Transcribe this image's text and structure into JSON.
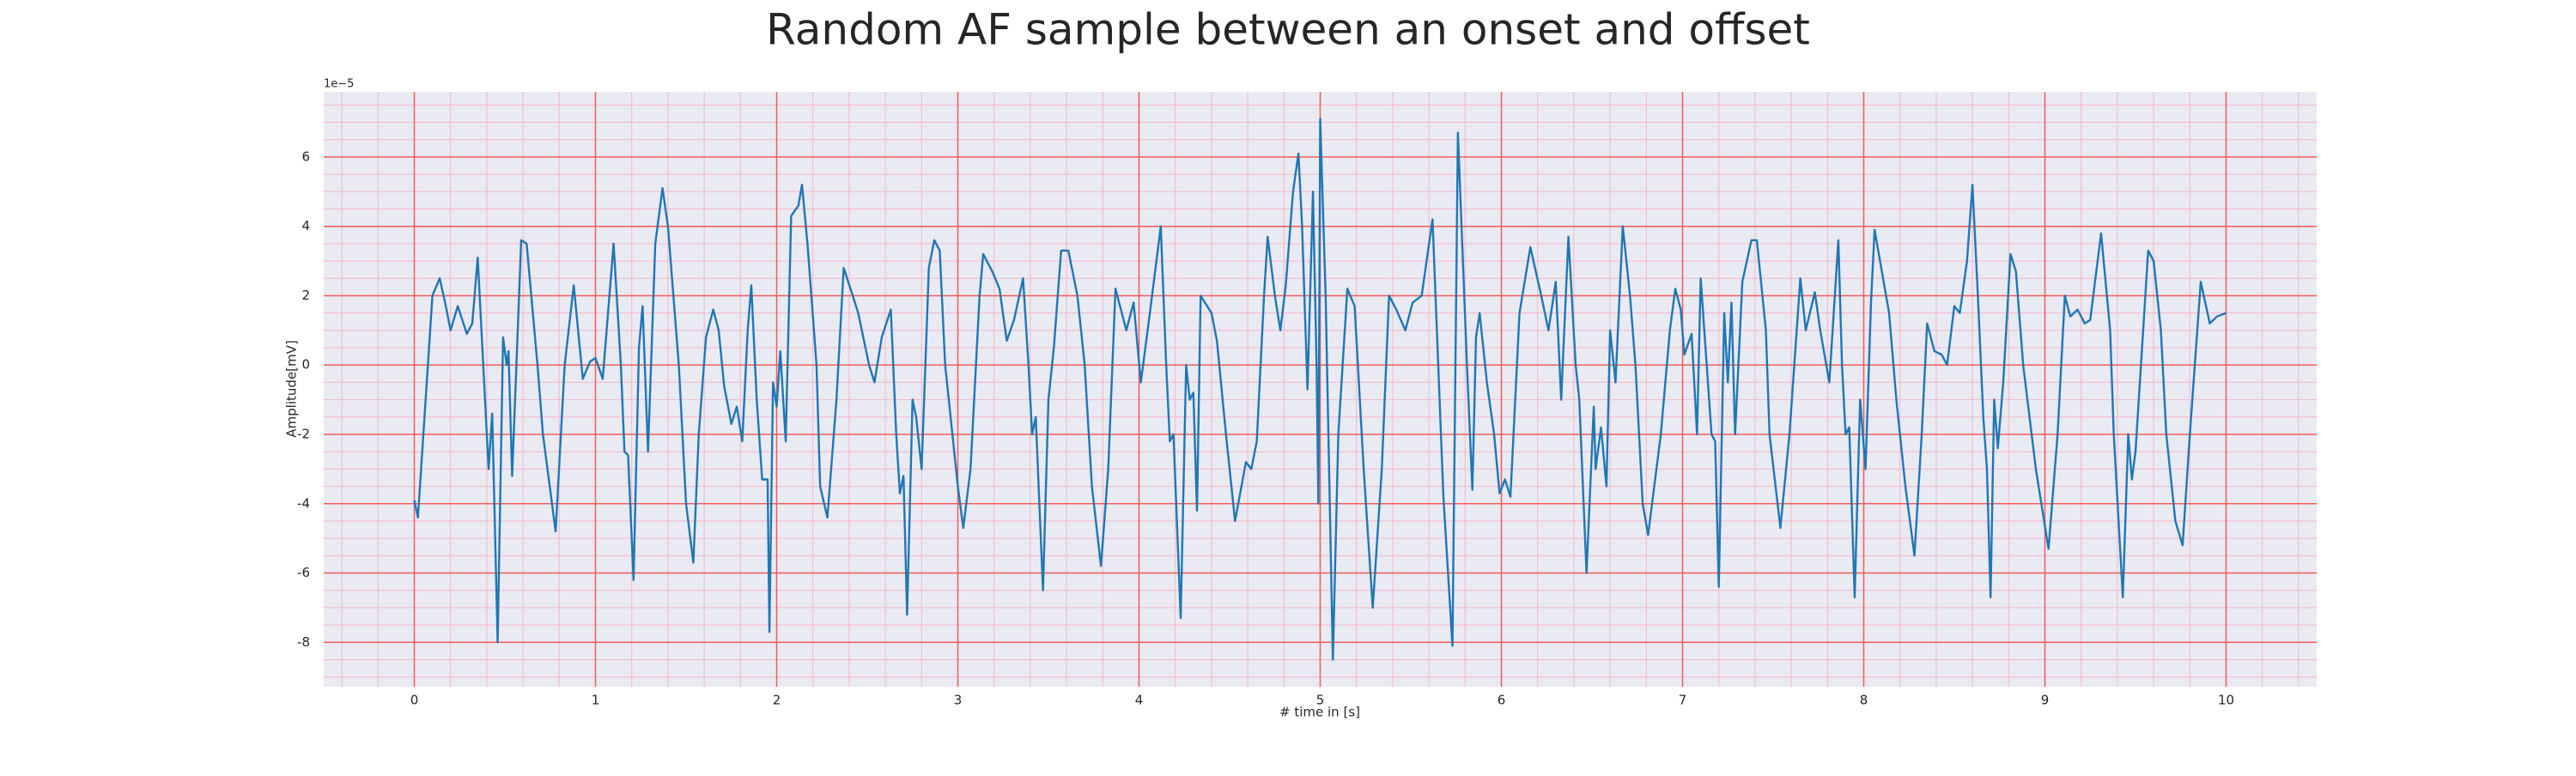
{
  "chart_data": {
    "type": "line",
    "title": "Random AF sample between an onset and offset",
    "xlabel": "# time in [s]",
    "ylabel": "Amplitude[mV]",
    "y_offset_label": "1e−5",
    "color": "#1f77b4",
    "grid": true,
    "minor_grid": true,
    "xlim": [
      -0.5,
      10.5
    ],
    "ylim": [
      -9.28,
      7.88
    ],
    "xticks": [
      0,
      1,
      2,
      3,
      4,
      5,
      6,
      7,
      8,
      9,
      10
    ],
    "yticks": [
      -8,
      -6,
      -4,
      -2,
      0,
      2,
      4,
      6
    ],
    "x": [
      0,
      0.02,
      0.1,
      0.14,
      0.17,
      0.2,
      0.24,
      0.29,
      0.32,
      0.35,
      0.41,
      0.43,
      0.46,
      0.49,
      0.51,
      0.52,
      0.54,
      0.59,
      0.62,
      0.68,
      0.71,
      0.78,
      0.83,
      0.88,
      0.93,
      0.97,
      1.0,
      1.04,
      1.1,
      1.14,
      1.16,
      1.18,
      1.21,
      1.24,
      1.26,
      1.29,
      1.33,
      1.37,
      1.4,
      1.46,
      1.5,
      1.54,
      1.57,
      1.61,
      1.65,
      1.68,
      1.71,
      1.75,
      1.78,
      1.81,
      1.84,
      1.86,
      1.89,
      1.92,
      1.95,
      1.96,
      1.98,
      2.0,
      2.02,
      2.05,
      2.08,
      2.12,
      2.14,
      2.17,
      2.22,
      2.24,
      2.28,
      2.33,
      2.37,
      2.42,
      2.45,
      2.51,
      2.54,
      2.58,
      2.63,
      2.66,
      2.68,
      2.7,
      2.72,
      2.75,
      2.77,
      2.8,
      2.84,
      2.87,
      2.9,
      2.93,
      3.0,
      3.03,
      3.07,
      3.12,
      3.14,
      3.19,
      3.23,
      3.27,
      3.31,
      3.36,
      3.39,
      3.41,
      3.43,
      3.47,
      3.5,
      3.53,
      3.57,
      3.61,
      3.66,
      3.7,
      3.74,
      3.79,
      3.83,
      3.87,
      3.93,
      3.97,
      4.01,
      4.06,
      4.12,
      4.15,
      4.17,
      4.19,
      4.23,
      4.26,
      4.28,
      4.3,
      4.32,
      4.34,
      4.4,
      4.43,
      4.48,
      4.53,
      4.59,
      4.62,
      4.65,
      4.69,
      4.71,
      4.75,
      4.78,
      4.81,
      4.85,
      4.88,
      4.9,
      4.93,
      4.96,
      4.98,
      4.99,
      5.0,
      5.03,
      5.07,
      5.1,
      5.15,
      5.19,
      5.24,
      5.29,
      5.34,
      5.38,
      5.42,
      5.47,
      5.51,
      5.56,
      5.62,
      5.68,
      5.73,
      5.76,
      5.81,
      5.84,
      5.86,
      5.88,
      5.92,
      5.96,
      5.99,
      6.02,
      6.05,
      6.1,
      6.16,
      6.22,
      6.26,
      6.3,
      6.33,
      6.37,
      6.41,
      6.43,
      6.47,
      6.51,
      6.52,
      6.55,
      6.58,
      6.6,
      6.63,
      6.67,
      6.71,
      6.74,
      6.78,
      6.81,
      6.88,
      6.93,
      6.96,
      6.99,
      7.01,
      7.05,
      7.08,
      7.1,
      7.16,
      7.18,
      7.2,
      7.23,
      7.25,
      7.27,
      7.29,
      7.33,
      7.38,
      7.41,
      7.46,
      7.48,
      7.54,
      7.59,
      7.65,
      7.68,
      7.73,
      7.76,
      7.81,
      7.86,
      7.88,
      7.9,
      7.92,
      7.95,
      7.98,
      8.01,
      8.04,
      8.06,
      8.09,
      8.14,
      8.18,
      8.23,
      8.28,
      8.32,
      8.35,
      8.39,
      8.43,
      8.46,
      8.5,
      8.53,
      8.57,
      8.6,
      8.63,
      8.66,
      8.68,
      8.7,
      8.72,
      8.74,
      8.77,
      8.81,
      8.84,
      8.88,
      8.95,
      9.02,
      9.07,
      9.11,
      9.14,
      9.18,
      9.22,
      9.25,
      9.31,
      9.36,
      9.38,
      9.43,
      9.46,
      9.48,
      9.5,
      9.57,
      9.6,
      9.64,
      9.67,
      9.72,
      9.76,
      9.8,
      9.86,
      9.91,
      9.95,
      10.0
    ],
    "values": [
      -3.9,
      -4.4,
      2,
      2.5,
      1.8,
      1.0,
      1.7,
      0.9,
      1.2,
      3.1,
      -3,
      -1.4,
      -8,
      0.8,
      0,
      0.4,
      -3.2,
      3.6,
      3.5,
      0,
      -2,
      -4.8,
      0,
      2.3,
      -0.4,
      0.1,
      0.2,
      -0.4,
      3.5,
      0,
      -2.5,
      -2.6,
      -6.2,
      0.5,
      1.7,
      -2.5,
      3.5,
      5.1,
      4,
      0,
      -4,
      -5.7,
      -2,
      0.8,
      1.6,
      1,
      -0.6,
      -1.7,
      -1.2,
      -2.2,
      1,
      2.3,
      -1,
      -3.3,
      -3.3,
      -7.7,
      -0.5,
      -1.2,
      0.4,
      -2.2,
      4.3,
      4.6,
      5.2,
      3.5,
      0,
      -3.5,
      -4.4,
      -1,
      2.8,
      2,
      1.5,
      0,
      -0.5,
      0.8,
      1.6,
      -2,
      -3.7,
      -3.2,
      -7.2,
      -1,
      -1.5,
      -3,
      2.8,
      3.6,
      3.3,
      0,
      -3.5,
      -4.7,
      -3,
      2,
      3.2,
      2.7,
      2.2,
      0.7,
      1.3,
      2.5,
      0,
      -2,
      -1.5,
      -6.5,
      -1,
      0.5,
      3.3,
      3.3,
      2,
      0,
      -3.5,
      -5.8,
      -3,
      2.2,
      1,
      1.8,
      -0.5,
      1.5,
      4,
      0,
      -2.2,
      -2,
      -7.3,
      0,
      -1,
      -0.8,
      -4.2,
      2,
      1.5,
      0.7,
      -2,
      -4.5,
      -2.8,
      -3,
      -2.2,
      2,
      3.7,
      2,
      1,
      2.3,
      5,
      6.1,
      4,
      -0.7,
      5,
      0,
      -4,
      7.1,
      2,
      -8.5,
      -2,
      2.2,
      1.7,
      -3,
      -7,
      -3,
      2,
      1.6,
      1,
      1.8,
      2,
      4.2,
      -3.8,
      -8.1,
      6.7,
      0,
      -3.6,
      0.8,
      1.5,
      -0.5,
      -2,
      -3.7,
      -3.3,
      -3.8,
      1.5,
      3.4,
      2,
      1,
      2.4,
      -1,
      3.7,
      0,
      -1,
      -6,
      -1.2,
      -3,
      -1.8,
      -3.5,
      1,
      -0.5,
      4,
      2,
      0,
      -4,
      -4.9,
      -2,
      1,
      2.2,
      1.6,
      0.3,
      0.9,
      -2,
      2.5,
      -2,
      -2.2,
      -6.4,
      1.5,
      -0.5,
      1.8,
      -2,
      2.4,
      3.6,
      3.6,
      1,
      -2,
      -4.7,
      -2,
      2.5,
      1,
      2.1,
      1,
      -0.5,
      3.6,
      0,
      -2,
      -1.8,
      -6.7,
      -1,
      -3,
      1.8,
      3.9,
      3,
      1.5,
      -1,
      -3.5,
      -5.5,
      -2,
      1.2,
      0.4,
      0.3,
      0,
      1.7,
      1.5,
      3,
      5.2,
      2,
      -1.5,
      -3,
      -6.7,
      -1,
      -2.4,
      -0.5,
      3.2,
      2.7,
      0,
      -3,
      -5.3,
      -2,
      2,
      1.4,
      1.6,
      1.2,
      1.3,
      3.8,
      1,
      -2,
      -6.7,
      -2,
      -3.3,
      -2.5,
      3.3,
      3,
      1,
      -2,
      -4.5,
      -5.2,
      -2,
      2.4,
      1.2,
      1.4,
      1.5
    ]
  }
}
